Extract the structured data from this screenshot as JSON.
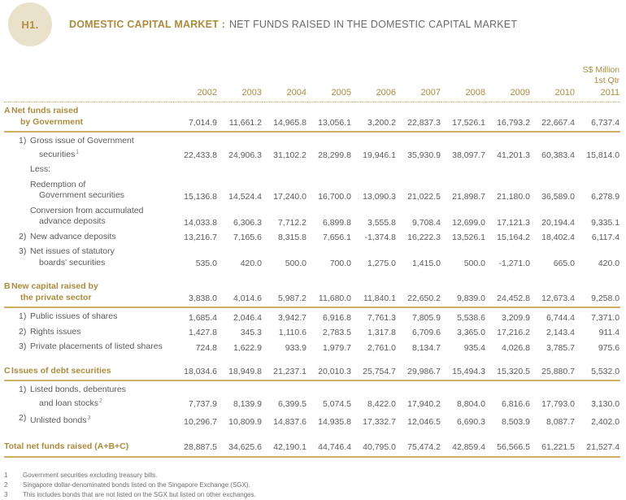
{
  "header": {
    "badge": "H1.",
    "title_bold": "DOMESTIC CAPITAL MARKET :",
    "title_rest": "NET FUNDS RAISED IN THE DOMESTIC CAPITAL MARKET"
  },
  "meta": {
    "unit_label": "S$ Million",
    "period_label": "1st Qtr"
  },
  "colors": {
    "gold_text": "#ab8c3e",
    "rule_gold": "#c9b169",
    "badge_beige": "#eae1ca",
    "body_gray": "#5a5b5d",
    "footnote_gray": "#6e6f71"
  },
  "table": {
    "columns": [
      "2002",
      "2003",
      "2004",
      "2005",
      "2006",
      "2007",
      "2008",
      "2009",
      "2010",
      "2011"
    ],
    "rows": [
      {
        "type": "section",
        "prefix": "A",
        "indent": 0,
        "rule_below": true,
        "lines": [
          "Net funds raised",
          "by Government"
        ],
        "values": [
          "7,014.9",
          "11,661.2",
          "14,965.8",
          "13,056.1",
          "3,200.2",
          "22,837.3",
          "17,526.1",
          "16,793.2",
          "22,667.4",
          "6,737.4"
        ]
      },
      {
        "type": "item",
        "prefix": "1)",
        "indent": 1,
        "sup": "1",
        "lines": [
          "Gross issue of Government",
          "securities"
        ],
        "values": [
          "22,433.8",
          "24,906.3",
          "31,102.2",
          "28,299.8",
          "19,946.1",
          "35,930.9",
          "38,097.7",
          "41,201.3",
          "60,383.4",
          "15,814.0"
        ]
      },
      {
        "type": "item",
        "prefix": "",
        "indent": 2,
        "lines": [
          "Less:"
        ],
        "values": null
      },
      {
        "type": "item",
        "prefix": "",
        "indent": 2,
        "lines": [
          "Redemption of",
          "Government securities"
        ],
        "values": [
          "15,136.8",
          "14,524.4",
          "17,240.0",
          "16,700.0",
          "13,090.3",
          "21,022.5",
          "21,898.7",
          "21,180.0",
          "36,589.0",
          "6,278.9"
        ]
      },
      {
        "type": "item",
        "prefix": "",
        "indent": 2,
        "lines": [
          "Conversion from accumulated",
          "advance deposits"
        ],
        "values": [
          "14,033.8",
          "6,306.3",
          "7,712.2",
          "6,899.8",
          "3,555.8",
          "9,708.4",
          "12,699.0",
          "17,121.3",
          "20,194.4",
          "9,335.1"
        ]
      },
      {
        "type": "item",
        "prefix": "2)",
        "indent": 1,
        "lines": [
          "New advance deposits"
        ],
        "values": [
          "13,216.7",
          "7,165.6",
          "8,315.8",
          "7,656.1",
          "-1,374.8",
          "16,222.3",
          "13,526.1",
          "15,164.2",
          "18,402.4",
          "6,117.4"
        ]
      },
      {
        "type": "item",
        "prefix": "3)",
        "indent": 1,
        "lines": [
          "Net issues of statutory",
          "boards' securities"
        ],
        "values": [
          "535.0",
          "420.0",
          "500.0",
          "700.0",
          "1,275.0",
          "1,415.0",
          "500.0",
          "-1,271.0",
          "665.0",
          "420.0"
        ]
      },
      {
        "type": "spacer"
      },
      {
        "type": "section",
        "prefix": "B",
        "indent": 0,
        "rule_below": true,
        "lines": [
          "New capital raised by",
          "the private sector"
        ],
        "values": [
          "3,838.0",
          "4,014.6",
          "5,987.2",
          "11,680.0",
          "11,840.1",
          "22,650.2",
          "9,839.0",
          "24,452.8",
          "12,673.4",
          "9,258.0"
        ]
      },
      {
        "type": "item",
        "prefix": "1)",
        "indent": 1,
        "lines": [
          "Public issues of shares"
        ],
        "values": [
          "1,685.4",
          "2,046.4",
          "3,942.7",
          "6,916.8",
          "7,761.3",
          "7,805.9",
          "5,538.6",
          "3,209.9",
          "6,744.4",
          "7,371.0"
        ]
      },
      {
        "type": "item",
        "prefix": "2)",
        "indent": 1,
        "lines": [
          "Rights issues"
        ],
        "values": [
          "1,427.8",
          "345.3",
          "1,110.6",
          "2,783.5",
          "1,317.8",
          "6,709.6",
          "3,365.0",
          "17,216.2",
          "2,143.4",
          "911.4"
        ]
      },
      {
        "type": "item",
        "prefix": "3)",
        "indent": 1,
        "lines": [
          "Private placements of listed shares"
        ],
        "values": [
          "724.8",
          "1,622.9",
          "933.9",
          "1,979.7",
          "2,761.0",
          "8,134.7",
          "935.4",
          "4,026.8",
          "3,785.7",
          "975.6"
        ]
      },
      {
        "type": "spacer"
      },
      {
        "type": "section",
        "prefix": "C",
        "indent": 0,
        "rule_below": true,
        "lines": [
          "Issues of debt securities"
        ],
        "values": [
          "18,034.6",
          "18,949.8",
          "21,237.1",
          "20,010.3",
          "25,754.7",
          "29,986.7",
          "15,494.3",
          "15,320.5",
          "25,880.7",
          "5,532.0"
        ]
      },
      {
        "type": "item",
        "prefix": "1)",
        "indent": 1,
        "sup": "2",
        "lines": [
          "Listed bonds, debentures",
          "and loan stocks"
        ],
        "values": [
          "7,737.9",
          "8,139.9",
          "6,399.5",
          "5,074.5",
          "8,422.0",
          "17,940.2",
          "8,804.0",
          "6,816.6",
          "17,793.0",
          "3,130.0"
        ]
      },
      {
        "type": "item",
        "prefix": "2)",
        "indent": 1,
        "sup": "3",
        "lines": [
          "Unlisted bonds"
        ],
        "values": [
          "10,296.7",
          "10,809.9",
          "14,837.6",
          "14,935.8",
          "17,332.7",
          "12,046.5",
          "6,690.3",
          "8,503.9",
          "8,087.7",
          "2,402.0"
        ]
      },
      {
        "type": "spacer"
      },
      {
        "type": "total",
        "prefix": "",
        "indent": 0,
        "lines": [
          "Total net funds raised (A+B+C)"
        ],
        "values": [
          "28,887.5",
          "34,625.6",
          "42,190.1",
          "44,746.4",
          "40,795.0",
          "75,474.2",
          "42,859.4",
          "56,566.5",
          "61,221.5",
          "21,527.4"
        ]
      }
    ]
  },
  "footnotes": [
    {
      "num": "1",
      "text": "Government securities excluding treasury bills."
    },
    {
      "num": "2",
      "text": "Singapore dollar-denominated bonds listed on the Singapore Exchange (SGX)."
    },
    {
      "num": "3",
      "text": "This includes bonds that are not listed on the SGX but listed on other exchanges."
    }
  ]
}
